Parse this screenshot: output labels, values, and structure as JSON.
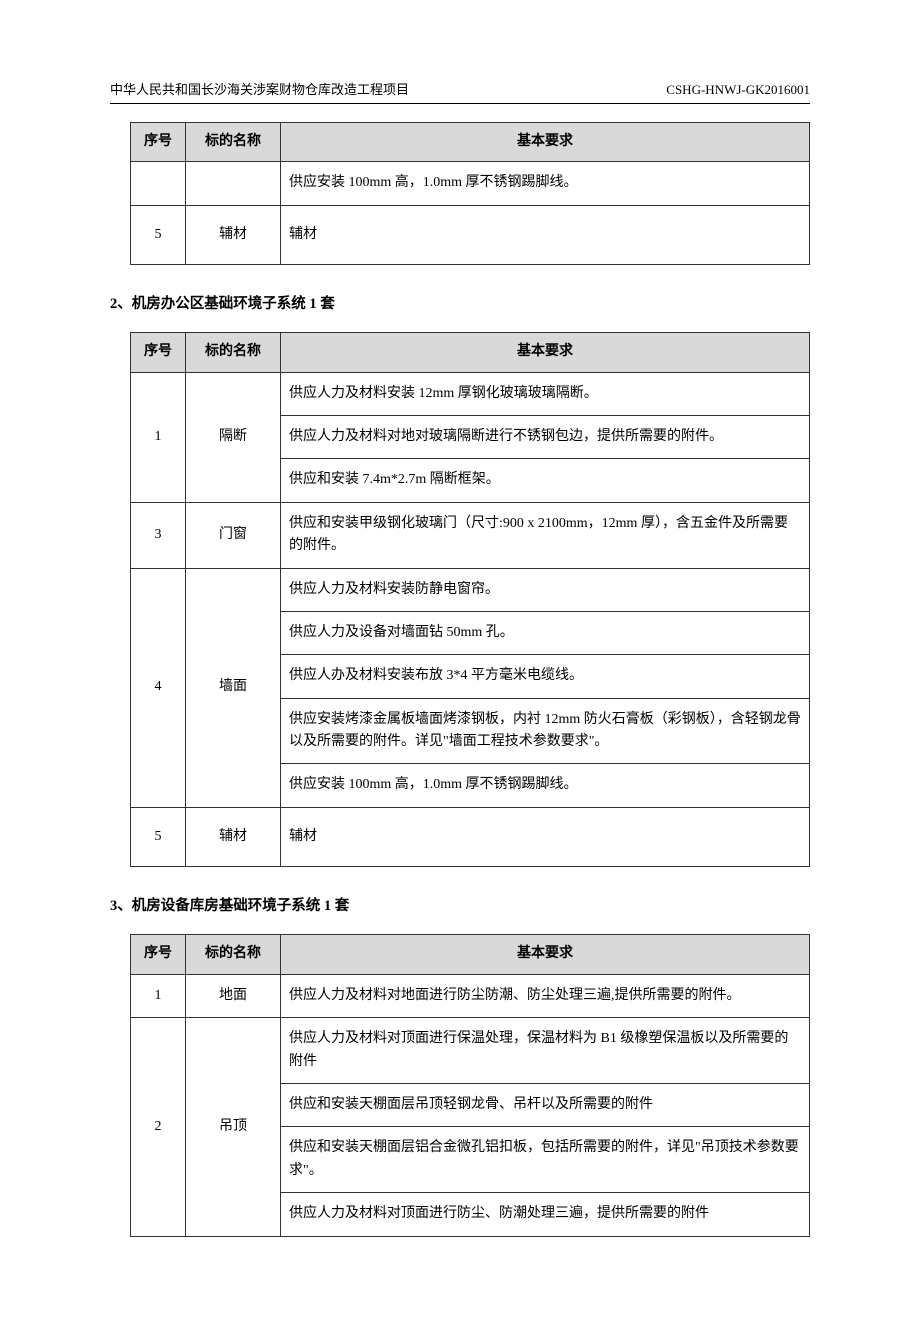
{
  "header": {
    "left": "中华人民共和国长沙海关涉案财物仓库改造工程项目",
    "right": "CSHG-HNWJ-GK2016001"
  },
  "table1": {
    "headers": {
      "seq": "序号",
      "name": "标的名称",
      "req": "基本要求"
    },
    "rows": [
      {
        "seq": "",
        "name": "",
        "req": "供应安装 100mm 高，1.0mm 厚不锈钢踢脚线。"
      },
      {
        "seq": "5",
        "name": "辅材",
        "req": "辅材"
      }
    ]
  },
  "section2": {
    "title": "2、机房办公区基础环境子系统   1 套"
  },
  "table2": {
    "headers": {
      "seq": "序号",
      "name": "标的名称",
      "req": "基本要求"
    },
    "groups": [
      {
        "seq": "1",
        "name": "隔断",
        "reqs": [
          "供应人力及材料安装 12mm 厚钢化玻璃玻璃隔断。",
          "供应人力及材料对地对玻璃隔断进行不锈钢包边，提供所需要的附件。",
          "供应和安装 7.4m*2.7m 隔断框架。"
        ]
      },
      {
        "seq": "3",
        "name": "门窗",
        "reqs": [
          "供应和安装甲级钢化玻璃门（尺寸:900 x 2100mm，12mm 厚），含五金件及所需要的附件。"
        ]
      },
      {
        "seq": "4",
        "name": "墙面",
        "reqs": [
          "供应人力及材料安装防静电窗帘。",
          "供应人力及设备对墙面钻 50mm 孔。",
          "供应人办及材料安装布放 3*4 平方毫米电缆线。",
          "供应安装烤漆金属板墙面烤漆钢板，内衬 12mm 防火石膏板（彩钢板），含轻钢龙骨以及所需要的附件。详见\"墙面工程技术参数要求\"。",
          "供应安装 100mm 高，1.0mm 厚不锈钢踢脚线。"
        ]
      },
      {
        "seq": "5",
        "name": "辅材",
        "reqs": [
          "辅材"
        ]
      }
    ]
  },
  "section3": {
    "title": "3、机房设备库房基础环境子系统   1 套"
  },
  "table3": {
    "headers": {
      "seq": "序号",
      "name": "标的名称",
      "req": "基本要求"
    },
    "groups": [
      {
        "seq": "1",
        "name": "地面",
        "reqs": [
          "供应人力及材料对地面进行防尘防潮、防尘处理三遍,提供所需要的附件。"
        ]
      },
      {
        "seq": "2",
        "name": "吊顶",
        "reqs": [
          "供应人力及材料对顶面进行保温处理，保温材料为 B1 级橡塑保温板以及所需要的附件",
          "供应和安装天棚面层吊顶轻钢龙骨、吊杆以及所需要的附件",
          "供应和安装天棚面层铝合金微孔铝扣板，包括所需要的附件，详见\"吊顶技术参数要求\"。",
          "供应人力及材料对顶面进行防尘、防潮处理三遍，提供所需要的附件"
        ]
      }
    ]
  }
}
